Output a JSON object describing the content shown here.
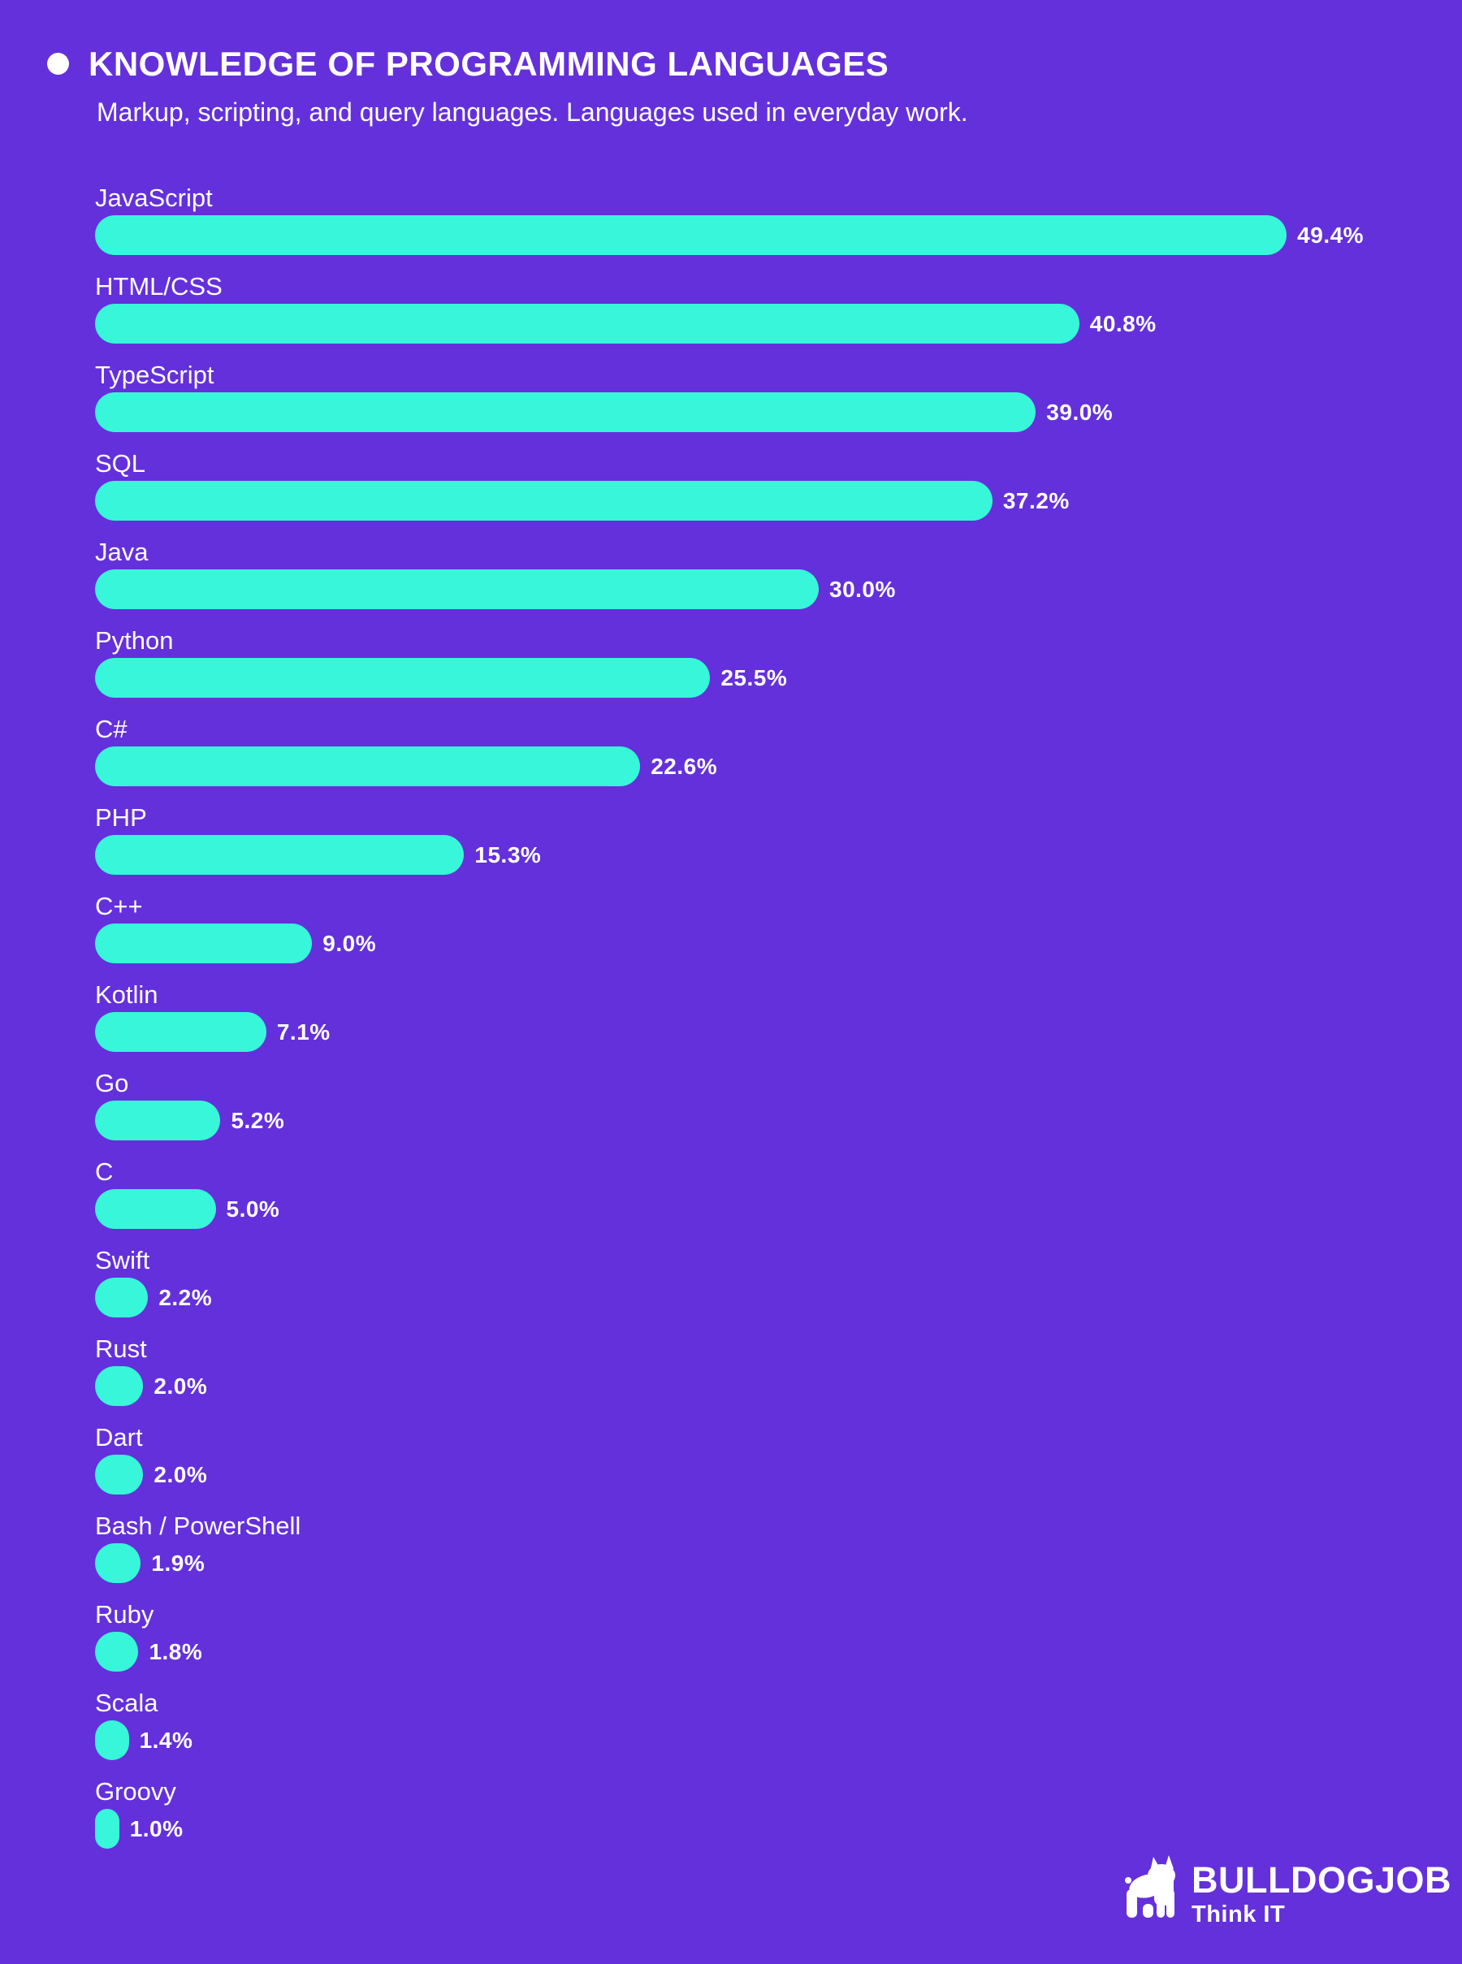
{
  "page": {
    "background_color": "#6430DB",
    "accent_color": "#37F6D9"
  },
  "header": {
    "bullet_icon": "dot-icon",
    "title": "KNOWLEDGE OF PROGRAMMING LANGUAGES",
    "subtitle": "Markup, scripting, and query languages. Languages used in everyday work."
  },
  "chart_data": {
    "type": "bar",
    "orientation": "horizontal",
    "title": "KNOWLEDGE OF PROGRAMMING LANGUAGES",
    "subtitle": "Markup, scripting, and query languages. Languages used in everyday work.",
    "categories": [
      "JavaScript",
      "HTML/CSS",
      "TypeScript",
      "SQL",
      "Java",
      "Python",
      "C#",
      "PHP",
      "C++",
      "Kotlin",
      "Go",
      "C",
      "Swift",
      "Rust",
      "Dart",
      "Bash / PowerShell",
      "Ruby",
      "Scala",
      "Groovy"
    ],
    "values": [
      49.4,
      40.8,
      39.0,
      37.2,
      30.0,
      25.5,
      22.6,
      15.3,
      9.0,
      7.1,
      5.2,
      5.0,
      2.2,
      2.0,
      2.0,
      1.9,
      1.8,
      1.4,
      1.0
    ],
    "unit": "%",
    "value_decimals": 1,
    "xlim": [
      0,
      55
    ],
    "bar_color": "#37F6D9",
    "label_color": "#FFFFFF",
    "grid": false,
    "legend": false
  },
  "footer": {
    "logo_icon": "bulldog-icon",
    "brand": "BULLDOGJOB",
    "tagline": "Think IT"
  }
}
